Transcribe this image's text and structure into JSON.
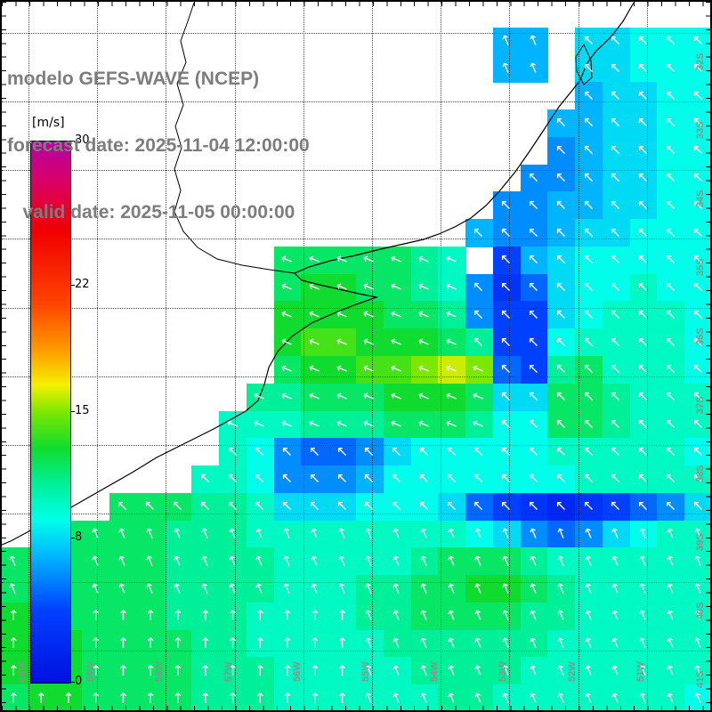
{
  "title": {
    "line1": "modelo GEFS-WAVE (NCEP)",
    "line2": "forecast date: 2025-11-04 12:00:00",
    "line3": "   valid date: 2025-11-05 00:00:00"
  },
  "colorbar": {
    "unit_label": "[m/s]",
    "min": 0,
    "max": 30,
    "ticks": [
      30,
      22,
      15,
      8,
      0
    ],
    "stops": [
      {
        "v": 0,
        "c": "#0010e0"
      },
      {
        "v": 4,
        "c": "#0040ff"
      },
      {
        "v": 7,
        "c": "#00b4ff"
      },
      {
        "v": 9,
        "c": "#00ffea"
      },
      {
        "v": 11,
        "c": "#00f09a"
      },
      {
        "v": 13,
        "c": "#10dc30"
      },
      {
        "v": 15,
        "c": "#7ce800"
      },
      {
        "v": 16.5,
        "c": "#f4f000"
      },
      {
        "v": 18.5,
        "c": "#ff9800"
      },
      {
        "v": 21,
        "c": "#ff4400"
      },
      {
        "v": 25,
        "c": "#f00000"
      },
      {
        "v": 28,
        "c": "#d8006c"
      },
      {
        "v": 30,
        "c": "#b400a0"
      }
    ]
  },
  "axes": {
    "lon_labels": [
      "60W",
      "59W",
      "58W",
      "57W",
      "56W",
      "55W",
      "54W",
      "53W",
      "52W",
      "51W"
    ],
    "lat_labels": [
      "32S",
      "33S",
      "34S",
      "35S",
      "36S",
      "37S",
      "38S",
      "39S",
      "40S",
      "41S"
    ]
  },
  "arrow": {
    "glyph": "↑",
    "color": "#ffffff"
  },
  "chart_data": {
    "type": "heatmap",
    "units": "m/s",
    "grid_cols": 26,
    "grid_rows": 26,
    "speed_encoding": "base36 wind speed in m/s per cell (a=10 ... g=16), '.' = no data / land",
    "dir_encoding": "hex digit x 22.5 deg clockwise from north (arrow pointing direction), '.' = none",
    "speed_rows": [
      "..........................",
      "..................77.88999",
      "..................77.88999",
      ".....................78899",
      "....................778899",
      "....................678899",
      "...................6678899",
      "..................66778899",
      ".................766788999",
      "..........cccccba.47899999",
      "..........cddccba635899a99",
      "..........ddddccb64489aaa9",
      "..........deedddcb449aaaa9",
      "..........cddeefgf54bcaaa9",
      ".........bbcccdddc88ccbaaa",
      "........aaabbbcccb99ccbaaa",
      "........a96556899999aaaaa9",
      ".......aa966679999999aaaaa",
      "....cccbba8889998543234568",
      "..ccccbbbaaaaaaaa9865689aa",
      "ccccccbbbbaaaaabcccbaaaaaa",
      "ccccccbbbbaaabbccddcbaaaaa",
      "ddccccbbbaaaabbccccbbaaaaa",
      "dddccccbbaaaaabbbbbbaaaaaa",
      "dddccccbbbaaaaabbbbaaaaaaa",
      "cddccccbbbaaaaaabbaaaaaaa9"
    ],
    "dir_rows": [
      "..........................",
      "..................ff.eeeee",
      "..................ff.eeeee",
      ".....................eeeee",
      "....................eeeeee",
      "....................eeeeee",
      "...................eeeeeee",
      "..................eeeeeeee",
      ".................eeeeeeeee",
      "..........ddddddd.eeeeeeee",
      "..........dddddddeeeeeeeee",
      "..........dddddddeeeeeeeee",
      "..........dddddddeeeeeeeee",
      "..........ddddddddeeeeeeee",
      ".........dddddddddeeeeeeee",
      "........ddddddddddeeeeeeee",
      "........eeeeeeeeeeeeeeeeee",
      ".......eeeeeeeeeeeeeeeeeee",
      "....eeeeeeeeeeeeeeeeeeeeee",
      "..ffffffffffffffffffffffff",
      "ffffffffffffffffffffffffff",
      "ffffffffffffffffffffffffff",
      "0000000000000fffffffffffff",
      "0000000000000fffffffffffff",
      "0000000000000fffffffffffff",
      "0000000000000fffffffffffff"
    ]
  }
}
